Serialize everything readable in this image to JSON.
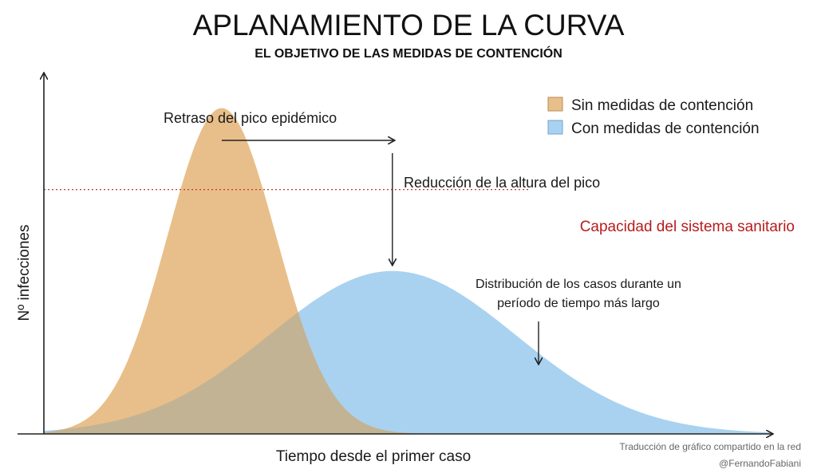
{
  "title": "APLANAMIENTO DE LA CURVA",
  "subtitle": "EL OBJETIVO DE LAS MEDIDAS DE CONTENCIÓN",
  "colors": {
    "without_measures": "#e8bf8a",
    "with_measures": "#a9d2f0",
    "overlap": "#c2b394",
    "capacity_line": "#c0392b",
    "axis": "#222222"
  },
  "chart_data": {
    "type": "area",
    "xlabel": "Tiempo desde el primer caso",
    "ylabel": "Nº infecciones",
    "xlim": [
      0,
      100
    ],
    "ylim": [
      0,
      100
    ],
    "series": [
      {
        "name": "Sin medidas de contención",
        "shape": "gaussian",
        "peak_x": 24.5,
        "peak_y": 92,
        "spread": 7.5
      },
      {
        "name": "Con medidas de contención",
        "shape": "gaussian",
        "peak_x": 48,
        "peak_y": 46,
        "spread": 17
      }
    ],
    "reference_lines": [
      {
        "label": "Capacidad del sistema sanitario",
        "y": 69,
        "style": "dotted"
      }
    ]
  },
  "legend": {
    "placement": "top-right",
    "items": [
      {
        "label": "Sin medidas de contención"
      },
      {
        "label": "Con medidas de contención"
      }
    ]
  },
  "annotations": {
    "delay": "Retraso del pico epidémico",
    "reduction": "Reducción de la altura del pico",
    "distribution_line1": "Distribución de los casos durante un",
    "distribution_line2": "período de tiempo más largo"
  },
  "credit": {
    "line1": "Traducción de gráfico compartido en la red",
    "line2": "@FernandoFabiani"
  }
}
